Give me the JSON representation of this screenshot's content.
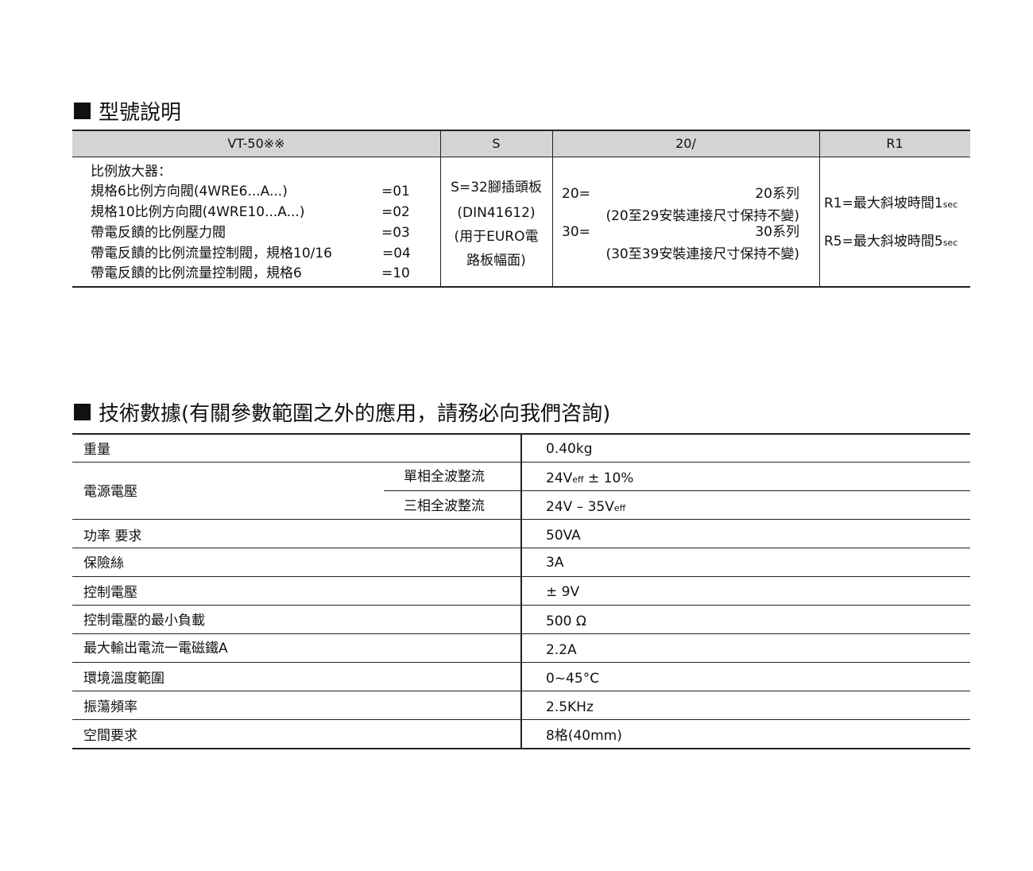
{
  "model_section": {
    "title": "型號說明",
    "headers": [
      "VT-50※※",
      "S",
      "20/",
      "R1"
    ],
    "col1": {
      "heading": "比例放大器：",
      "items": [
        {
          "label": "規格6比例方向閥(4WRE6...A...)",
          "code": "=01"
        },
        {
          "label": "規格10比例方向閥(4WRE10...A...)",
          "code": "=02"
        },
        {
          "label": "帶電反饋的比例壓力閥",
          "code": "=03"
        },
        {
          "label": "帶電反饋的比例流量控制閥，規格10/16",
          "code": "=04"
        },
        {
          "label": "帶電反饋的比例流量控制閥，規格6",
          "code": "=10"
        }
      ]
    },
    "col2": [
      "S=32腳插頭板",
      "(DIN41612)",
      "(用于EURO電",
      "路板幅面)"
    ],
    "col3": [
      {
        "code": "20=",
        "series": "20系列",
        "note": "(20至29安裝連接尺寸保持不變)"
      },
      {
        "code": "30=",
        "series": "30系列",
        "note": "(30至39安裝連接尺寸保持不變)"
      }
    ],
    "col4": [
      {
        "text": "R1=最大斜坡時間1",
        "unit": "sec"
      },
      {
        "text": "R5=最大斜坡時間5",
        "unit": "sec"
      }
    ]
  },
  "tech_section": {
    "title": "技術數據(有關參數範圍之外的應用，請務必向我們咨詢)",
    "rows": [
      {
        "label": "重量",
        "value": "0.40kg"
      },
      {
        "label": "電源電壓",
        "sub": [
          {
            "label": "單相全波整流",
            "value": "24V",
            "value_sub": "eff",
            "value_tail": " ± 10%"
          },
          {
            "label": "三相全波整流",
            "value": "24V – 35V",
            "value_sub": "eff",
            "value_tail": ""
          }
        ]
      },
      {
        "label": "功率 要求",
        "value": "50VA"
      },
      {
        "label": "保險絲",
        "value": "3A"
      },
      {
        "label": "控制電壓",
        "value": "± 9V"
      },
      {
        "label": "控制電壓的最小負載",
        "value": "500 Ω"
      },
      {
        "label": "最大輸出電流一電磁鐵A",
        "value": "2.2A"
      },
      {
        "label": "環境溫度範圍",
        "value": "0~45°C"
      },
      {
        "label": "振蕩頻率",
        "value": "2.5KHz"
      },
      {
        "label": "空間要求",
        "value": "8格(40mm)"
      }
    ]
  }
}
